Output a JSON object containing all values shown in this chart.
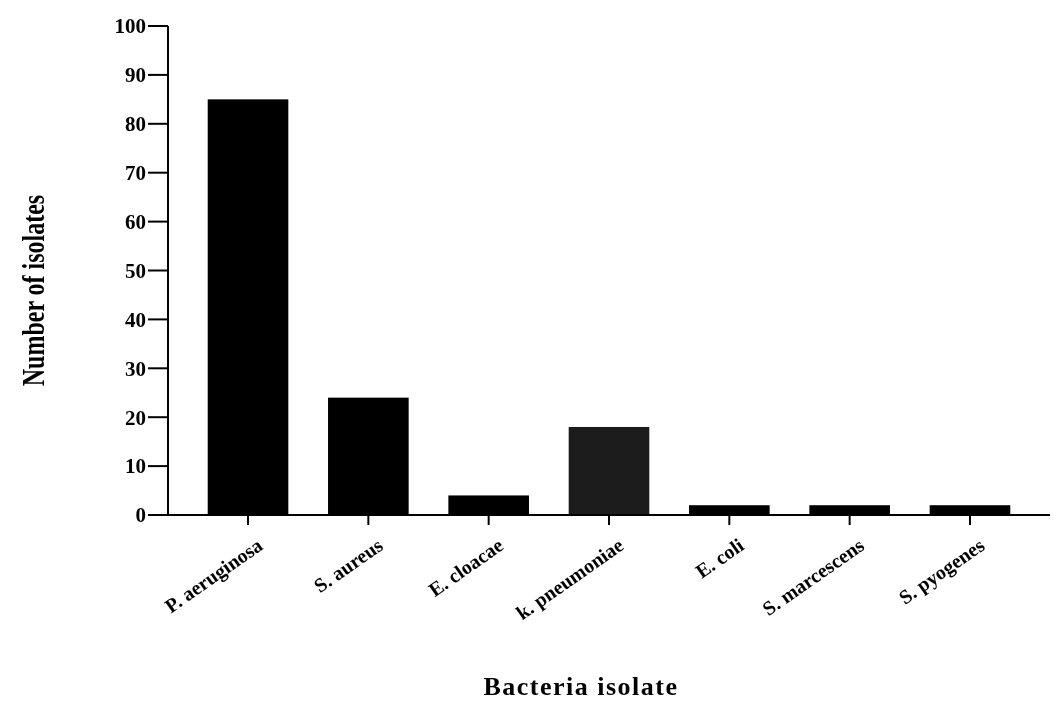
{
  "chart_data": {
    "type": "bar",
    "xlabel": "Bacteria isolate",
    "ylabel": "Number of isolates",
    "categories": [
      "P. aeruginosa",
      "S. aureus",
      "E. cloacae",
      "k. pneumoniae",
      "E. coli",
      "S. marcescens",
      "S. pyogenes"
    ],
    "values": [
      85,
      24,
      4,
      18,
      2,
      2,
      2
    ],
    "colors": [
      "#000000",
      "#000000",
      "#000000",
      "#1c1c1c",
      "#000000",
      "#000000",
      "#000000"
    ],
    "ylim": [
      0,
      100
    ],
    "yticks": [
      0,
      10,
      20,
      30,
      40,
      50,
      60,
      70,
      80,
      90,
      100
    ],
    "grid": false
  }
}
